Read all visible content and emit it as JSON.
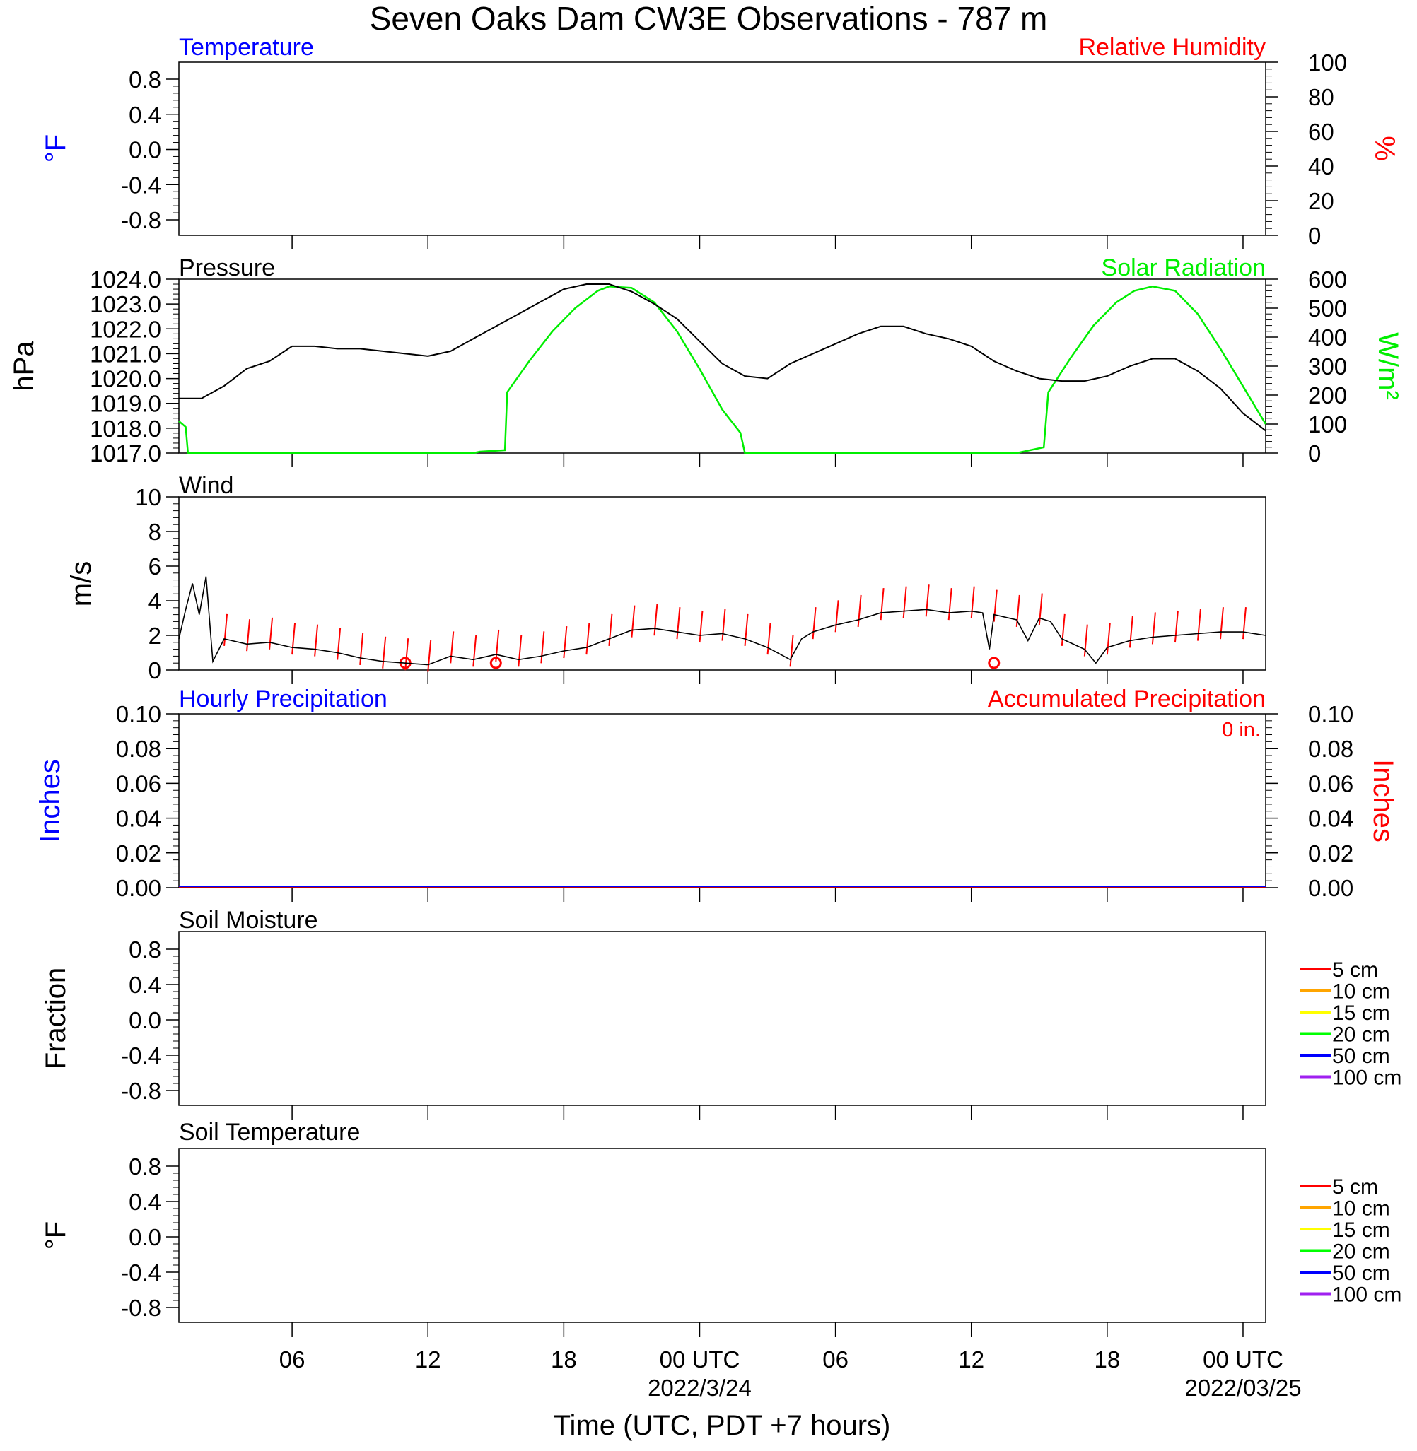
{
  "title": "Seven Oaks Dam CW3E Observations - 787 m",
  "xlabel": "Time (UTC, PDT +7 hours)",
  "colors": {
    "temp": "#0000ff",
    "rh": "#ff0000",
    "pressure": "#000000",
    "solar": "#00ee00",
    "wind": "#000000",
    "barb": "#ff0000",
    "precip_hourly": "#0000ff",
    "precip_accum": "#ff0000"
  },
  "time_axis": {
    "start_hour": 0,
    "end_hour": 48,
    "ticks": [
      {
        "hour": 5,
        "label": "06"
      },
      {
        "hour": 11,
        "label": "12"
      },
      {
        "hour": 17,
        "label": "18"
      },
      {
        "hour": 23,
        "label": "00 UTC",
        "date": "2022/3/24"
      },
      {
        "hour": 29,
        "label": "06"
      },
      {
        "hour": 35,
        "label": "12"
      },
      {
        "hour": 41,
        "label": "18"
      },
      {
        "hour": 47,
        "label": "00 UTC",
        "date": "2022/03/25"
      }
    ]
  },
  "panels": {
    "temperature": {
      "title_left": "Temperature",
      "title_right": "Relative Humidity",
      "ylabel_left": "°F",
      "ylabel_right": "%",
      "left_ticks": [
        "0.8",
        "0.4",
        "0.0",
        "-0.4",
        "-0.8"
      ],
      "right_ticks": [
        "100",
        "80",
        "60",
        "40",
        "20",
        "0"
      ]
    },
    "pressure": {
      "title_left": "Pressure",
      "title_right": "Solar Radiation",
      "ylabel_left": "hPa",
      "ylabel_right": "W/m²",
      "left_ticks": [
        "1024.0",
        "1023.0",
        "1022.0",
        "1021.0",
        "1020.0",
        "1019.0",
        "1018.0",
        "1017.0"
      ],
      "right_ticks": [
        "600",
        "500",
        "400",
        "300",
        "200",
        "100",
        "0"
      ]
    },
    "wind": {
      "title_left": "Wind",
      "ylabel_left": "m/s",
      "left_ticks": [
        "10",
        "8",
        "6",
        "4",
        "2",
        "0"
      ]
    },
    "precip": {
      "title_left": "Hourly Precipitation",
      "title_right": "Accumulated Precipitation",
      "accum_total": "0 in.",
      "ylabel_left": "Inches",
      "ylabel_right": "Inches",
      "left_ticks": [
        "0.10",
        "0.08",
        "0.06",
        "0.04",
        "0.02",
        "0.00"
      ],
      "right_ticks": [
        "0.10",
        "0.08",
        "0.06",
        "0.04",
        "0.02",
        "0.00"
      ]
    },
    "soil_moisture": {
      "title_left": "Soil Moisture",
      "ylabel_left": "Fraction",
      "left_ticks": [
        "0.8",
        "0.4",
        "0.0",
        "-0.4",
        "-0.8"
      ],
      "legend": [
        {
          "label": "5 cm",
          "color": "#ff0000"
        },
        {
          "label": "10 cm",
          "color": "#ffa500"
        },
        {
          "label": "15 cm",
          "color": "#ffff00"
        },
        {
          "label": "20 cm",
          "color": "#00ff00"
        },
        {
          "label": "50 cm",
          "color": "#0000ff"
        },
        {
          "label": "100 cm",
          "color": "#a020f0"
        }
      ]
    },
    "soil_temperature": {
      "title_left": "Soil Temperature",
      "ylabel_left": "°F",
      "left_ticks": [
        "0.8",
        "0.4",
        "0.0",
        "-0.4",
        "-0.8"
      ],
      "legend": [
        {
          "label": "5 cm",
          "color": "#ff0000"
        },
        {
          "label": "10 cm",
          "color": "#ffa500"
        },
        {
          "label": "15 cm",
          "color": "#ffff00"
        },
        {
          "label": "20 cm",
          "color": "#00ff00"
        },
        {
          "label": "50 cm",
          "color": "#0000ff"
        },
        {
          "label": "100 cm",
          "color": "#a020f0"
        }
      ]
    }
  },
  "chart_data": [
    {
      "type": "line",
      "title": "Pressure",
      "ylabel": "hPa",
      "ylim": [
        1017,
        1024
      ],
      "x_unit": "hours since start",
      "series": [
        {
          "name": "Pressure",
          "color": "#000000",
          "points": [
            [
              0,
              1019.2
            ],
            [
              1,
              1019.2
            ],
            [
              2,
              1019.7
            ],
            [
              3,
              1020.4
            ],
            [
              4,
              1020.7
            ],
            [
              5,
              1021.3
            ],
            [
              6,
              1021.3
            ],
            [
              7,
              1021.2
            ],
            [
              8,
              1021.2
            ],
            [
              9,
              1021.1
            ],
            [
              10,
              1021.0
            ],
            [
              11,
              1020.9
            ],
            [
              12,
              1021.1
            ],
            [
              13,
              1021.6
            ],
            [
              14,
              1022.1
            ],
            [
              15,
              1022.6
            ],
            [
              16,
              1023.1
            ],
            [
              17,
              1023.6
            ],
            [
              18,
              1023.8
            ],
            [
              19,
              1023.8
            ],
            [
              20,
              1023.5
            ],
            [
              21,
              1023.0
            ],
            [
              22,
              1022.4
            ],
            [
              23,
              1021.5
            ],
            [
              24,
              1020.6
            ],
            [
              25,
              1020.1
            ],
            [
              26,
              1020.0
            ],
            [
              27,
              1020.6
            ],
            [
              28,
              1021.0
            ],
            [
              29,
              1021.4
            ],
            [
              30,
              1021.8
            ],
            [
              31,
              1022.1
            ],
            [
              32,
              1022.1
            ],
            [
              33,
              1021.8
            ],
            [
              34,
              1021.6
            ],
            [
              35,
              1021.3
            ],
            [
              36,
              1020.7
            ],
            [
              37,
              1020.3
            ],
            [
              38,
              1020.0
            ],
            [
              39,
              1019.9
            ],
            [
              40,
              1019.9
            ],
            [
              41,
              1020.1
            ],
            [
              42,
              1020.5
            ],
            [
              43,
              1020.8
            ],
            [
              44,
              1020.8
            ],
            [
              45,
              1020.3
            ],
            [
              46,
              1019.6
            ],
            [
              47,
              1018.6
            ],
            [
              48,
              1017.9
            ]
          ]
        }
      ]
    },
    {
      "type": "line",
      "title": "Solar Radiation",
      "ylabel": "W/m²",
      "ylim": [
        0,
        600
      ],
      "x_unit": "hours since start",
      "series": [
        {
          "name": "Solar Radiation",
          "color": "#00ee00",
          "points": [
            [
              0,
              110
            ],
            [
              0.3,
              90
            ],
            [
              0.4,
              0
            ],
            [
              13,
              0
            ],
            [
              13.3,
              5
            ],
            [
              14.4,
              10
            ],
            [
              14.5,
              210
            ],
            [
              15.5,
              320
            ],
            [
              16.5,
              420
            ],
            [
              17.5,
              500
            ],
            [
              18.5,
              560
            ],
            [
              19,
              575
            ],
            [
              20,
              570
            ],
            [
              21,
              520
            ],
            [
              22,
              420
            ],
            [
              23,
              290
            ],
            [
              24,
              150
            ],
            [
              24.8,
              70
            ],
            [
              25,
              0
            ],
            [
              37,
              0
            ],
            [
              38.2,
              20
            ],
            [
              38.4,
              210
            ],
            [
              39.4,
              330
            ],
            [
              40.4,
              440
            ],
            [
              41.4,
              520
            ],
            [
              42.2,
              560
            ],
            [
              43,
              575
            ],
            [
              44,
              560
            ],
            [
              45,
              480
            ],
            [
              46,
              360
            ],
            [
              47,
              230
            ],
            [
              48,
              100
            ]
          ]
        }
      ]
    },
    {
      "type": "line",
      "title": "Wind",
      "ylabel": "m/s",
      "ylim": [
        0,
        10
      ],
      "x_unit": "hours since start",
      "series": [
        {
          "name": "Wind",
          "color": "#000000",
          "points": [
            [
              0,
              1.8
            ],
            [
              0.3,
              3.5
            ],
            [
              0.6,
              5.0
            ],
            [
              0.9,
              3.2
            ],
            [
              1.2,
              5.4
            ],
            [
              1.5,
              0.5
            ],
            [
              2,
              1.8
            ],
            [
              3,
              1.5
            ],
            [
              4,
              1.6
            ],
            [
              5,
              1.3
            ],
            [
              6,
              1.2
            ],
            [
              7,
              1.0
            ],
            [
              8,
              0.7
            ],
            [
              9,
              0.5
            ],
            [
              10,
              0.4
            ],
            [
              11,
              0.3
            ],
            [
              12,
              0.8
            ],
            [
              13,
              0.6
            ],
            [
              14,
              0.9
            ],
            [
              15,
              0.6
            ],
            [
              16,
              0.8
            ],
            [
              17,
              1.1
            ],
            [
              18,
              1.3
            ],
            [
              19,
              1.8
            ],
            [
              20,
              2.3
            ],
            [
              21,
              2.4
            ],
            [
              22,
              2.2
            ],
            [
              23,
              2.0
            ],
            [
              24,
              2.1
            ],
            [
              25,
              1.8
            ],
            [
              26,
              1.3
            ],
            [
              27,
              0.6
            ],
            [
              27.5,
              1.8
            ],
            [
              28,
              2.2
            ],
            [
              29,
              2.6
            ],
            [
              30,
              2.9
            ],
            [
              31,
              3.3
            ],
            [
              32,
              3.4
            ],
            [
              33,
              3.5
            ],
            [
              34,
              3.3
            ],
            [
              35,
              3.4
            ],
            [
              35.5,
              3.3
            ],
            [
              35.8,
              1.2
            ],
            [
              36,
              3.2
            ],
            [
              37,
              2.9
            ],
            [
              37.5,
              1.7
            ],
            [
              38,
              3.0
            ],
            [
              38.5,
              2.8
            ],
            [
              39,
              1.8
            ],
            [
              40,
              1.2
            ],
            [
              40.5,
              0.4
            ],
            [
              41,
              1.3
            ],
            [
              42,
              1.7
            ],
            [
              43,
              1.9
            ],
            [
              44,
              2.0
            ],
            [
              45,
              2.1
            ],
            [
              46,
              2.2
            ],
            [
              47,
              2.2
            ],
            [
              48,
              2.0
            ]
          ]
        }
      ],
      "calm_markers_hours": [
        10,
        14,
        36
      ]
    },
    {
      "type": "line",
      "title": "Hourly Precipitation",
      "ylabel": "Inches",
      "ylim": [
        0,
        0.1
      ],
      "series": [
        {
          "name": "Hourly Precipitation",
          "values": [
            0
          ]
        }
      ]
    },
    {
      "type": "line",
      "title": "Accumulated Precipitation",
      "ylabel": "Inches",
      "ylim": [
        0,
        0.1
      ],
      "series": [
        {
          "name": "Accumulated Precipitation",
          "values": [
            0
          ]
        }
      ]
    }
  ]
}
